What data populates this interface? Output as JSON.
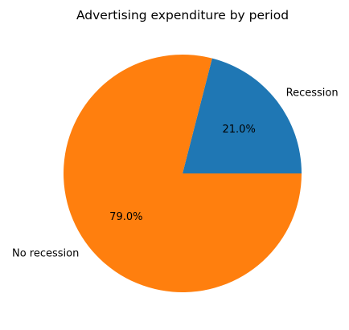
{
  "chart_data": {
    "type": "pie",
    "title": "Advertising expenditure by period",
    "slices": [
      {
        "label": "Recession",
        "value": 21.0,
        "pct_label": "21.0%",
        "color": "#1f77b4"
      },
      {
        "label": "No recession",
        "value": 79.0,
        "pct_label": "79.0%",
        "color": "#ff7f0e"
      }
    ],
    "start_angle_deg": 0,
    "direction": "counterclockwise",
    "legend": "none"
  }
}
